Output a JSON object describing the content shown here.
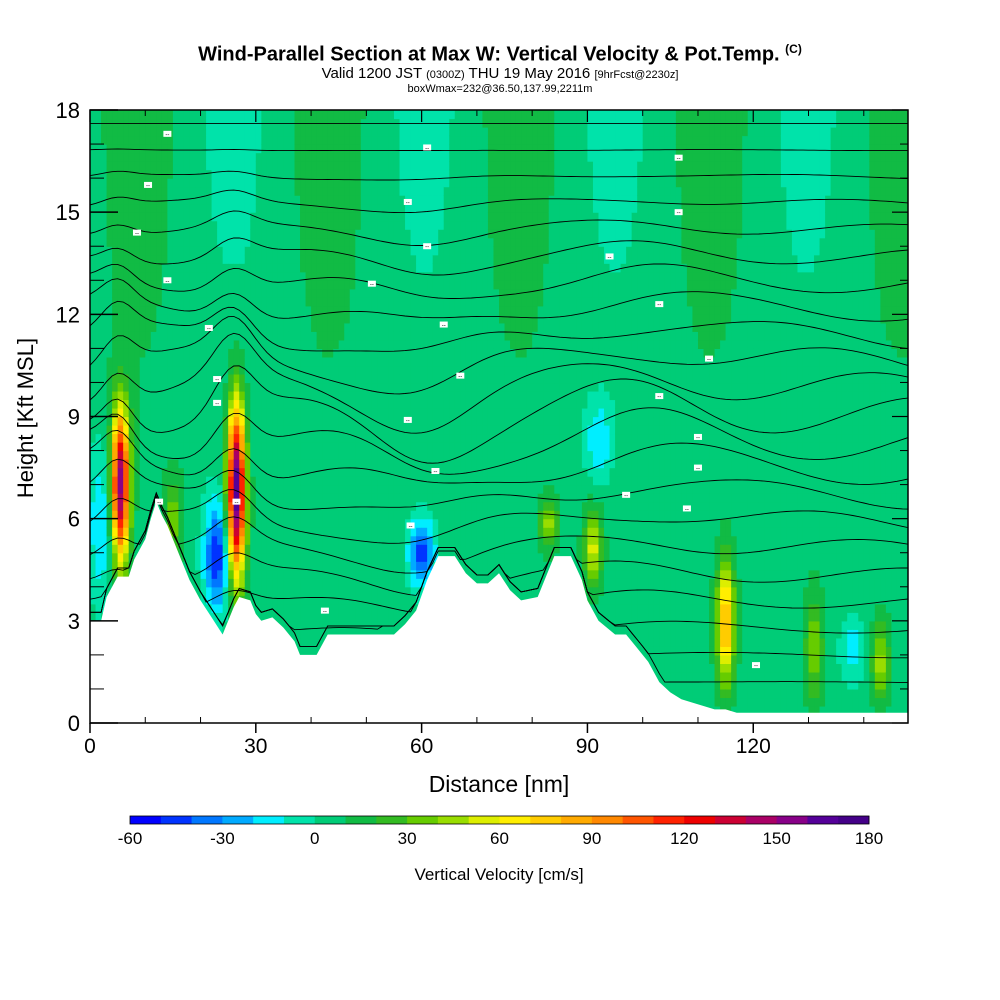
{
  "title": {
    "main": "Wind-Parallel Section at Max W: Vertical Velocity & Pot.Temp.",
    "mark": "(C)",
    "subtitle_main": "Valid 1200 JST",
    "subtitle_utc": "(0300Z)",
    "subtitle_date": "THU 19 May 2016",
    "subtitle_fcst": "[9hrFcst@2230z]",
    "detail": "boxWmax=232@36.50,137.99,2211m"
  },
  "chart_data": {
    "type": "heatmap",
    "xlabel": "Distance [nm]",
    "ylabel": "Height [Kft MSL]",
    "xlim": [
      0,
      148
    ],
    "ylim": [
      0,
      18
    ],
    "x_ticks": [
      "0",
      "30",
      "60",
      "90",
      "120"
    ],
    "y_ticks": [
      "0",
      "3",
      "6",
      "9",
      "12",
      "15",
      "18"
    ],
    "colorbar": {
      "label": "Vertical Velocity [cm/s]",
      "tick_labels": [
        "-60",
        "-30",
        "0",
        "30",
        "60",
        "90",
        "120",
        "150",
        "180"
      ],
      "min": -60,
      "max": 180,
      "colors": [
        "#0000ff",
        "#0033ff",
        "#0077ff",
        "#00aaff",
        "#00eeff",
        "#00e3aa",
        "#00cc77",
        "#11bb44",
        "#33bb22",
        "#66cc00",
        "#99dd00",
        "#ddee00",
        "#ffee00",
        "#ffcc00",
        "#ffaa00",
        "#ff8800",
        "#ff5500",
        "#ff2200",
        "#ee0000",
        "#cc0033",
        "#aa0066",
        "#880088",
        "#550099",
        "#440088"
      ]
    },
    "terrain_kft": [
      [
        0,
        3
      ],
      [
        2,
        3
      ],
      [
        3,
        3.7
      ],
      [
        5,
        4.3
      ],
      [
        7,
        4.3
      ],
      [
        8,
        4.8
      ],
      [
        10,
        5.4
      ],
      [
        11,
        6.0
      ],
      [
        12,
        6.5
      ],
      [
        13,
        6.1
      ],
      [
        14,
        5.8
      ],
      [
        16,
        5.0
      ],
      [
        18,
        4.2
      ],
      [
        20,
        3.6
      ],
      [
        22,
        3.1
      ],
      [
        24,
        2.6
      ],
      [
        26,
        3.4
      ],
      [
        27,
        3.7
      ],
      [
        29,
        3.6
      ],
      [
        30,
        3.2
      ],
      [
        31,
        3.0
      ],
      [
        33,
        3.1
      ],
      [
        35,
        2.8
      ],
      [
        37,
        2.4
      ],
      [
        38,
        2.0
      ],
      [
        41,
        2.0
      ],
      [
        43,
        2.6
      ],
      [
        45,
        2.6
      ],
      [
        50,
        2.6
      ],
      [
        55,
        2.6
      ],
      [
        57,
        2.9
      ],
      [
        59,
        3.3
      ],
      [
        61,
        4.2
      ],
      [
        63,
        4.9
      ],
      [
        66,
        4.9
      ],
      [
        68,
        4.4
      ],
      [
        70,
        4.1
      ],
      [
        72,
        4.1
      ],
      [
        74,
        4.4
      ],
      [
        76,
        3.9
      ],
      [
        78,
        3.6
      ],
      [
        81,
        3.7
      ],
      [
        84,
        4.9
      ],
      [
        87,
        4.9
      ],
      [
        89,
        4.2
      ],
      [
        90,
        3.6
      ],
      [
        92,
        3.0
      ],
      [
        95,
        2.6
      ],
      [
        97,
        2.6
      ],
      [
        99,
        2.2
      ],
      [
        101,
        1.8
      ],
      [
        103,
        1.2
      ],
      [
        105,
        0.9
      ],
      [
        107,
        0.7
      ],
      [
        109,
        0.6
      ],
      [
        111,
        0.5
      ],
      [
        113,
        0.4
      ],
      [
        115,
        0.4
      ],
      [
        117,
        0.3
      ],
      [
        121,
        0.3
      ],
      [
        125,
        0.3
      ],
      [
        148,
        0.3
      ]
    ],
    "updraft_cores": [
      {
        "x": 5.5,
        "z_bottom": 4.4,
        "z_top": 9.6,
        "w_max": 150
      },
      {
        "x": 26.5,
        "z_bottom": 3.8,
        "z_top": 9.8,
        "w_max": 165
      },
      {
        "x": 115,
        "z_bottom": 0.9,
        "z_top": 5.0,
        "w_max": 80
      },
      {
        "x": 91,
        "z_bottom": 3.8,
        "z_top": 6.4,
        "w_max": 50
      },
      {
        "x": 83,
        "z_bottom": 5.0,
        "z_top": 6.7,
        "w_max": 40
      },
      {
        "x": 131,
        "z_bottom": 0.4,
        "z_top": 4.0,
        "w_max": 35
      },
      {
        "x": 143,
        "z_bottom": 0.4,
        "z_top": 3.2,
        "w_max": 40
      },
      {
        "x": 15,
        "z_bottom": 4.6,
        "z_top": 7.5,
        "w_max": 30
      }
    ],
    "downdraft_cores": [
      {
        "x": 23,
        "z_bottom": 3.0,
        "z_top": 6.8,
        "w_min": -55
      },
      {
        "x": 60,
        "z_bottom": 3.8,
        "z_top": 6.2,
        "w_min": -50
      },
      {
        "x": 2,
        "z_bottom": 3.1,
        "z_top": 8.6,
        "w_min": -25
      },
      {
        "x": 92,
        "z_bottom": 7.0,
        "z_top": 9.6,
        "w_min": -25
      },
      {
        "x": 138,
        "z_bottom": 1.0,
        "z_top": 3.4,
        "w_min": -20
      }
    ],
    "isentrope_levels": 22,
    "annotations": [
      {
        "x": 14,
        "z": 17.3,
        "text": "--"
      },
      {
        "x": 61,
        "z": 16.9,
        "text": "--"
      },
      {
        "x": 106.5,
        "z": 16.6,
        "text": "--"
      },
      {
        "x": 10.5,
        "z": 15.8,
        "text": "--"
      },
      {
        "x": 57.5,
        "z": 15.3,
        "text": "--"
      },
      {
        "x": 106.5,
        "z": 15.0,
        "text": "--"
      },
      {
        "x": 8.5,
        "z": 14.4,
        "text": "--"
      },
      {
        "x": 61,
        "z": 14.0,
        "text": "--"
      },
      {
        "x": 94,
        "z": 13.7,
        "text": "--"
      },
      {
        "x": 14,
        "z": 13.0,
        "text": "--"
      },
      {
        "x": 51,
        "z": 12.9,
        "text": "--"
      },
      {
        "x": 103,
        "z": 12.3,
        "text": "--"
      },
      {
        "x": 21.5,
        "z": 11.6,
        "text": "--"
      },
      {
        "x": 64,
        "z": 11.7,
        "text": "--"
      },
      {
        "x": 112,
        "z": 10.7,
        "text": "--"
      },
      {
        "x": 23,
        "z": 10.1,
        "text": "--"
      },
      {
        "x": 67,
        "z": 10.2,
        "text": "--"
      },
      {
        "x": 103,
        "z": 9.6,
        "text": "--"
      },
      {
        "x": 23,
        "z": 9.4,
        "text": "--"
      },
      {
        "x": 57.5,
        "z": 8.9,
        "text": "--"
      },
      {
        "x": 110,
        "z": 8.4,
        "text": "--"
      },
      {
        "x": 62.5,
        "z": 7.4,
        "text": "--"
      },
      {
        "x": 110,
        "z": 7.5,
        "text": "--"
      },
      {
        "x": 97,
        "z": 6.7,
        "text": "--"
      },
      {
        "x": 12.5,
        "z": 6.5,
        "text": "--"
      },
      {
        "x": 26.5,
        "z": 6.5,
        "text": "--"
      },
      {
        "x": 108,
        "z": 6.3,
        "text": "--"
      },
      {
        "x": 58,
        "z": 5.8,
        "text": "--"
      },
      {
        "x": 42.5,
        "z": 3.3,
        "text": "--"
      },
      {
        "x": 120.5,
        "z": 1.7,
        "text": "--"
      }
    ]
  }
}
